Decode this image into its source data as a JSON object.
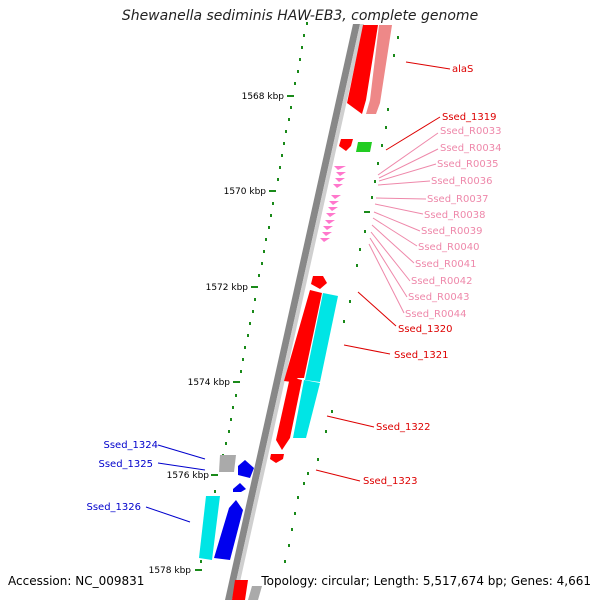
{
  "title": "Shewanella sediminis HAW-EB3, complete genome",
  "footer": {
    "accession": "Accession: NC_009831",
    "topology": "Topology: circular; Length: 5,517,674 bp; Genes: 4,661"
  },
  "ruler": {
    "labels": [
      "1568 kbp",
      "1570 kbp",
      "1572 kbp",
      "1574 kbp",
      "1576 kbp",
      "1578 kbp"
    ]
  },
  "genes": [
    {
      "id": "alaS",
      "label": "alaS",
      "color": "#dd0000"
    },
    {
      "id": "ssed-1319",
      "label": "Ssed_1319",
      "color": "#dd0000"
    },
    {
      "id": "ssed-r0033",
      "label": "Ssed_R0033",
      "color": "#ee88aa"
    },
    {
      "id": "ssed-r0034",
      "label": "Ssed_R0034",
      "color": "#ee88aa"
    },
    {
      "id": "ssed-r0035",
      "label": "Ssed_R0035",
      "color": "#ee88aa"
    },
    {
      "id": "ssed-r0036",
      "label": "Ssed_R0036",
      "color": "#ee88aa"
    },
    {
      "id": "ssed-r0037",
      "label": "Ssed_R0037",
      "color": "#ee88aa"
    },
    {
      "id": "ssed-r0038",
      "label": "Ssed_R0038",
      "color": "#ee88aa"
    },
    {
      "id": "ssed-r0039",
      "label": "Ssed_R0039",
      "color": "#ee88aa"
    },
    {
      "id": "ssed-r0040",
      "label": "Ssed_R0040",
      "color": "#ee88aa"
    },
    {
      "id": "ssed-r0041",
      "label": "Ssed_R0041",
      "color": "#ee88aa"
    },
    {
      "id": "ssed-r0042",
      "label": "Ssed_R0042",
      "color": "#ee88aa"
    },
    {
      "id": "ssed-r0043",
      "label": "Ssed_R0043",
      "color": "#ee88aa"
    },
    {
      "id": "ssed-r0044",
      "label": "Ssed_R0044",
      "color": "#ee88aa"
    },
    {
      "id": "ssed-1320",
      "label": "Ssed_1320",
      "color": "#dd0000"
    },
    {
      "id": "ssed-1321",
      "label": "Ssed_1321",
      "color": "#dd0000"
    },
    {
      "id": "ssed-1322",
      "label": "Ssed_1322",
      "color": "#dd0000"
    },
    {
      "id": "ssed-1323",
      "label": "Ssed_1323",
      "color": "#dd0000"
    },
    {
      "id": "ssed-1324",
      "label": "Ssed_1324",
      "color": "#0000cc"
    },
    {
      "id": "ssed-1325",
      "label": "Ssed_1325",
      "color": "#0000cc"
    },
    {
      "id": "ssed-1326",
      "label": "Ssed_1326",
      "color": "#0000cc"
    }
  ],
  "colors": {
    "backbone": "#888888",
    "tick": "#1a8a1a",
    "cds_forward": "#ff0000",
    "cds_forward_light": "#ee8888",
    "cds_reverse": "#0000ee",
    "cds_reverse_match": "#00e5e5",
    "trna": "#ff77cc",
    "rrna": "#22cc22",
    "pseudo": "#aaaaaa"
  }
}
